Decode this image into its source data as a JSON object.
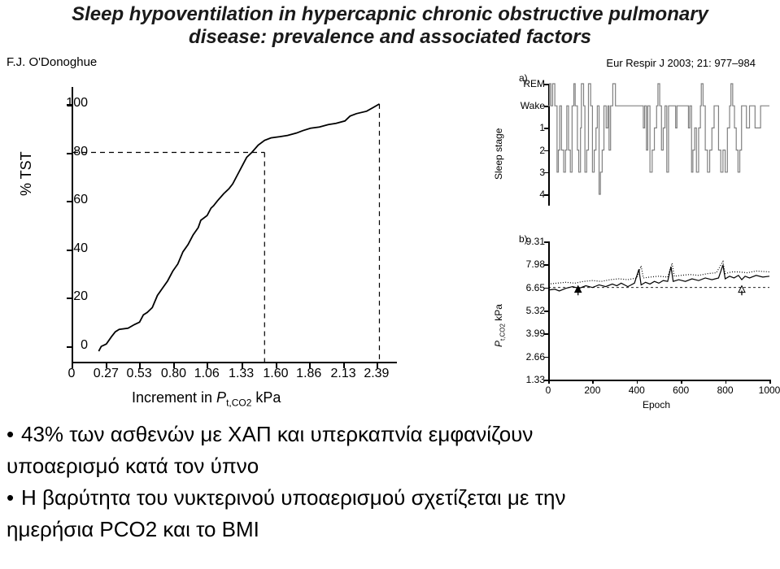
{
  "title": {
    "line1": "Sleep hypoventilation in hypercapnic chronic obstructive pulmonary",
    "line2": "disease: prevalence and associated factors"
  },
  "author": "F.J. O'Donoghue",
  "journal": "Eur Respir J 2003; 21: 977–984",
  "left_chart": {
    "type": "line",
    "ylabel": "% TST",
    "xlabel_prefix": "Increment in ",
    "xlabel_var": "P",
    "xlabel_sub": "t,CO2",
    "xlabel_unit": "  kPa",
    "xlim": [
      0,
      2.55
    ],
    "ylim": [
      -7,
      107
    ],
    "xticks": [
      0,
      0.27,
      0.53,
      0.8,
      1.06,
      1.33,
      1.6,
      1.86,
      2.13,
      2.39
    ],
    "yticks": [
      0,
      20,
      40,
      60,
      80,
      100
    ],
    "line_color": "#000000",
    "line_width": 1.8,
    "dash_color": "#000000",
    "dash_pattern": "6,5",
    "ref_y": 80,
    "ref_x": 1.5,
    "points": [
      [
        0.2,
        -2
      ],
      [
        0.22,
        0
      ],
      [
        0.24,
        0.5
      ],
      [
        0.26,
        1
      ],
      [
        0.3,
        4
      ],
      [
        0.33,
        6
      ],
      [
        0.36,
        7
      ],
      [
        0.43,
        7.5
      ],
      [
        0.48,
        9
      ],
      [
        0.52,
        10
      ],
      [
        0.55,
        13
      ],
      [
        0.58,
        14
      ],
      [
        0.62,
        16
      ],
      [
        0.66,
        21
      ],
      [
        0.7,
        24
      ],
      [
        0.74,
        27
      ],
      [
        0.78,
        31
      ],
      [
        0.82,
        34
      ],
      [
        0.86,
        39
      ],
      [
        0.9,
        42
      ],
      [
        0.92,
        44
      ],
      [
        0.94,
        46
      ],
      [
        0.98,
        49
      ],
      [
        1.0,
        52
      ],
      [
        1.05,
        54
      ],
      [
        1.08,
        57
      ],
      [
        1.1,
        58
      ],
      [
        1.13,
        60
      ],
      [
        1.18,
        63
      ],
      [
        1.22,
        65
      ],
      [
        1.25,
        67
      ],
      [
        1.3,
        72
      ],
      [
        1.33,
        75
      ],
      [
        1.36,
        78
      ],
      [
        1.4,
        80
      ],
      [
        1.45,
        83
      ],
      [
        1.5,
        85
      ],
      [
        1.55,
        86
      ],
      [
        1.62,
        86.5
      ],
      [
        1.68,
        87
      ],
      [
        1.75,
        88
      ],
      [
        1.8,
        89
      ],
      [
        1.86,
        90
      ],
      [
        1.93,
        90.5
      ],
      [
        2.0,
        91.5
      ],
      [
        2.06,
        92
      ],
      [
        2.13,
        93
      ],
      [
        2.17,
        95
      ],
      [
        2.22,
        96
      ],
      [
        2.3,
        97
      ],
      [
        2.35,
        98.5
      ],
      [
        2.4,
        100
      ]
    ]
  },
  "panel_a": {
    "label": "a)",
    "ylabel": "Sleep stage",
    "type": "hypnogram",
    "stages": [
      "REM",
      "Wake",
      "1",
      "2",
      "3",
      "4"
    ],
    "stage_heights": {
      "REM": 0,
      "Wake": 1,
      "1": 2,
      "2": 3,
      "3": 4,
      "4": 5
    },
    "epoch_range": [
      0,
      1000
    ],
    "line_color": "#808080",
    "line_width": 1.2,
    "segments": [
      [
        0,
        1
      ],
      [
        6,
        0
      ],
      [
        12,
        1
      ],
      [
        20,
        0
      ],
      [
        30,
        1
      ],
      [
        40,
        4
      ],
      [
        46,
        3
      ],
      [
        52,
        1
      ],
      [
        60,
        3
      ],
      [
        70,
        4
      ],
      [
        78,
        3
      ],
      [
        84,
        1
      ],
      [
        92,
        3
      ],
      [
        100,
        4
      ],
      [
        108,
        1
      ],
      [
        116,
        0
      ],
      [
        122,
        1
      ],
      [
        132,
        3
      ],
      [
        138,
        4
      ],
      [
        146,
        2
      ],
      [
        150,
        0
      ],
      [
        160,
        1
      ],
      [
        166,
        4
      ],
      [
        174,
        3
      ],
      [
        182,
        0
      ],
      [
        192,
        1
      ],
      [
        200,
        4
      ],
      [
        208,
        3
      ],
      [
        216,
        2
      ],
      [
        222,
        1
      ],
      [
        230,
        5
      ],
      [
        236,
        4
      ],
      [
        244,
        3
      ],
      [
        252,
        1
      ],
      [
        262,
        2
      ],
      [
        270,
        1
      ],
      [
        275,
        3
      ],
      [
        282,
        1
      ],
      [
        292,
        0
      ],
      [
        304,
        1
      ],
      [
        320,
        1
      ],
      [
        340,
        1
      ],
      [
        360,
        1
      ],
      [
        380,
        1
      ],
      [
        400,
        1
      ],
      [
        416,
        1
      ],
      [
        422,
        1
      ],
      [
        430,
        2
      ],
      [
        436,
        1
      ],
      [
        444,
        3
      ],
      [
        450,
        1
      ],
      [
        460,
        4
      ],
      [
        470,
        3
      ],
      [
        480,
        2
      ],
      [
        490,
        1
      ],
      [
        496,
        0
      ],
      [
        504,
        1
      ],
      [
        512,
        3
      ],
      [
        520,
        2
      ],
      [
        528,
        1
      ],
      [
        536,
        4
      ],
      [
        544,
        1
      ],
      [
        556,
        1
      ],
      [
        570,
        1
      ],
      [
        576,
        2
      ],
      [
        582,
        1
      ],
      [
        590,
        1
      ],
      [
        600,
        1
      ],
      [
        616,
        1
      ],
      [
        624,
        1
      ],
      [
        634,
        2
      ],
      [
        640,
        1
      ],
      [
        648,
        4
      ],
      [
        654,
        3
      ],
      [
        662,
        2
      ],
      [
        670,
        4
      ],
      [
        680,
        2
      ],
      [
        688,
        1
      ],
      [
        692,
        0
      ],
      [
        700,
        1
      ],
      [
        710,
        3
      ],
      [
        720,
        4
      ],
      [
        730,
        3
      ],
      [
        740,
        2
      ],
      [
        750,
        1
      ],
      [
        760,
        1
      ],
      [
        770,
        3
      ],
      [
        780,
        4
      ],
      [
        790,
        3
      ],
      [
        800,
        4
      ],
      [
        810,
        2
      ],
      [
        820,
        1
      ],
      [
        826,
        0
      ],
      [
        834,
        1
      ],
      [
        842,
        2
      ],
      [
        850,
        3
      ],
      [
        858,
        4
      ],
      [
        866,
        3
      ],
      [
        874,
        1
      ],
      [
        884,
        1
      ],
      [
        896,
        2
      ],
      [
        910,
        1
      ],
      [
        920,
        1
      ],
      [
        935,
        2
      ],
      [
        960,
        1
      ],
      [
        1000,
        1
      ]
    ]
  },
  "panel_b": {
    "label": "b)",
    "ylabel_var": "P",
    "ylabel_sub": "t,CO2",
    "ylabel_unit": "  kPa",
    "xlabel": "Epoch",
    "type": "line",
    "ylim": [
      1.33,
      9.31
    ],
    "xlim": [
      0,
      1000
    ],
    "yticks": [
      9.31,
      7.98,
      6.65,
      5.32,
      3.99,
      2.66,
      1.33
    ],
    "xticks": [
      0,
      200,
      400,
      600,
      800,
      1000
    ],
    "grid_dash": "3,3",
    "grid_color": "#000000",
    "line_color": "#000000",
    "line_width": 1.2,
    "dotted_color": "#000000",
    "dotted_dash": "1,2",
    "arrow_color": "#000000",
    "arrows": [
      135,
      875
    ],
    "series_solid": [
      [
        0,
        6.5
      ],
      [
        30,
        6.55
      ],
      [
        50,
        6.45
      ],
      [
        80,
        6.6
      ],
      [
        110,
        6.7
      ],
      [
        140,
        6.6
      ],
      [
        170,
        6.75
      ],
      [
        200,
        6.65
      ],
      [
        230,
        6.8
      ],
      [
        260,
        6.7
      ],
      [
        290,
        6.85
      ],
      [
        310,
        6.75
      ],
      [
        330,
        6.9
      ],
      [
        360,
        6.7
      ],
      [
        390,
        6.9
      ],
      [
        410,
        7.7
      ],
      [
        420,
        6.8
      ],
      [
        440,
        6.95
      ],
      [
        460,
        6.85
      ],
      [
        480,
        7.0
      ],
      [
        500,
        6.9
      ],
      [
        520,
        7.05
      ],
      [
        540,
        7.0
      ],
      [
        555,
        7.85
      ],
      [
        565,
        7.0
      ],
      [
        590,
        7.1
      ],
      [
        620,
        7.0
      ],
      [
        650,
        7.15
      ],
      [
        680,
        7.05
      ],
      [
        710,
        7.2
      ],
      [
        740,
        7.1
      ],
      [
        770,
        7.2
      ],
      [
        790,
        7.95
      ],
      [
        800,
        7.15
      ],
      [
        820,
        7.3
      ],
      [
        840,
        7.2
      ],
      [
        860,
        7.35
      ],
      [
        875,
        7.1
      ],
      [
        890,
        7.3
      ],
      [
        910,
        7.2
      ],
      [
        940,
        7.35
      ],
      [
        970,
        7.25
      ],
      [
        1000,
        7.3
      ]
    ],
    "series_dotted": [
      [
        0,
        6.85
      ],
      [
        40,
        6.9
      ],
      [
        80,
        6.95
      ],
      [
        120,
        6.9
      ],
      [
        160,
        7.0
      ],
      [
        200,
        7.05
      ],
      [
        240,
        7.0
      ],
      [
        280,
        7.1
      ],
      [
        320,
        7.15
      ],
      [
        360,
        7.1
      ],
      [
        400,
        7.2
      ],
      [
        420,
        7.9
      ],
      [
        430,
        7.2
      ],
      [
        460,
        7.25
      ],
      [
        500,
        7.3
      ],
      [
        540,
        7.25
      ],
      [
        560,
        8.05
      ],
      [
        570,
        7.3
      ],
      [
        600,
        7.35
      ],
      [
        640,
        7.4
      ],
      [
        680,
        7.35
      ],
      [
        720,
        7.45
      ],
      [
        760,
        7.5
      ],
      [
        790,
        8.15
      ],
      [
        800,
        7.45
      ],
      [
        830,
        7.55
      ],
      [
        860,
        7.55
      ],
      [
        900,
        7.5
      ],
      [
        940,
        7.6
      ],
      [
        1000,
        7.55
      ]
    ]
  },
  "bullets": {
    "items": [
      "43% των ασθενών με ΧΑΠ και υπερκαπνία εμφανίζουν",
      "υποαερισμό κατά τον ύπνο",
      "Η βαρύτητα του νυκτερινού υποαερισμού σχετίζεται με την",
      "ημερήσια PCO2 και το BMI"
    ],
    "bulleted": [
      true,
      false,
      true,
      false
    ]
  }
}
